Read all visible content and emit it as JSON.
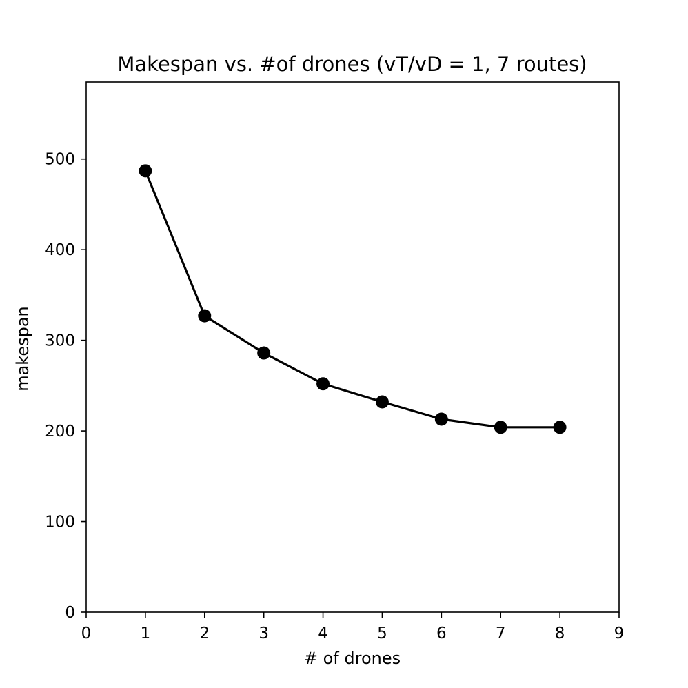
{
  "chart_data": {
    "type": "line",
    "title": "Makespan vs. #of drones (vT/vD = 1, 7 routes)",
    "xlabel": "# of drones",
    "ylabel": "makespan",
    "xlim": [
      0,
      9
    ],
    "ylim": [
      0,
      585
    ],
    "xticks": [
      "0",
      "1",
      "2",
      "3",
      "4",
      "5",
      "6",
      "7",
      "8",
      "9"
    ],
    "yticks": [
      "0",
      "100",
      "200",
      "300",
      "400",
      "500"
    ],
    "grid": false,
    "legend": "none",
    "series": [
      {
        "x": [
          1,
          2,
          3,
          4,
          5,
          6,
          7,
          8
        ],
        "values": [
          487,
          327,
          286,
          252,
          232,
          213,
          204,
          204
        ],
        "color": "#000000",
        "marker": "circle"
      }
    ]
  }
}
